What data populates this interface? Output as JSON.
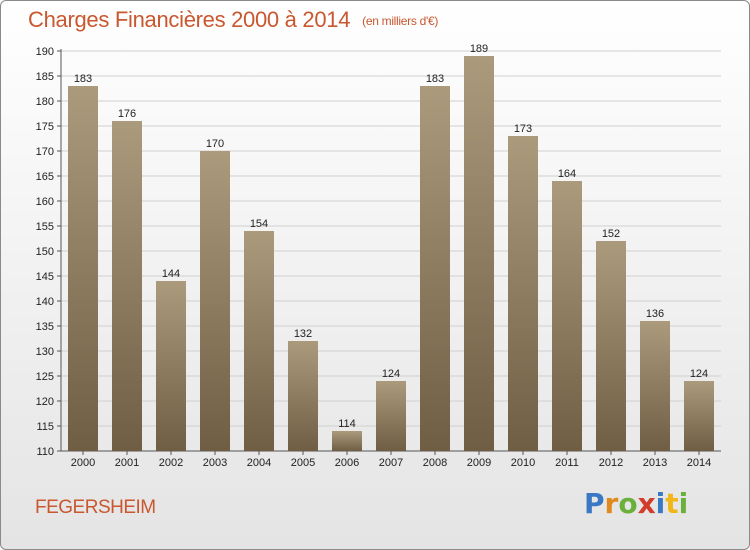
{
  "header": {
    "title": "Charges Financières 2000 à 2014",
    "subtitle": "(en milliers d'€)"
  },
  "footer": {
    "city": "FEGERSHEIM",
    "logo_text": "Proxiti"
  },
  "colors": {
    "title": "#c9572f",
    "bar_top": "#ab9a7c",
    "bar_bottom": "#6f5e44",
    "grid": "#d0d0d0"
  },
  "chart_data": {
    "type": "bar",
    "title": "Charges Financières 2000 à 2014",
    "subtitle": "(en milliers d'€)",
    "categories": [
      "2000",
      "2001",
      "2002",
      "2003",
      "2004",
      "2005",
      "2006",
      "2007",
      "2008",
      "2009",
      "2010",
      "2011",
      "2012",
      "2013",
      "2014"
    ],
    "values": [
      183,
      176,
      144,
      170,
      154,
      132,
      114,
      124,
      183,
      189,
      173,
      164,
      152,
      136,
      124
    ],
    "ylim": [
      110,
      190
    ],
    "ytick_step": 5,
    "grid": true,
    "data_labels": true
  }
}
